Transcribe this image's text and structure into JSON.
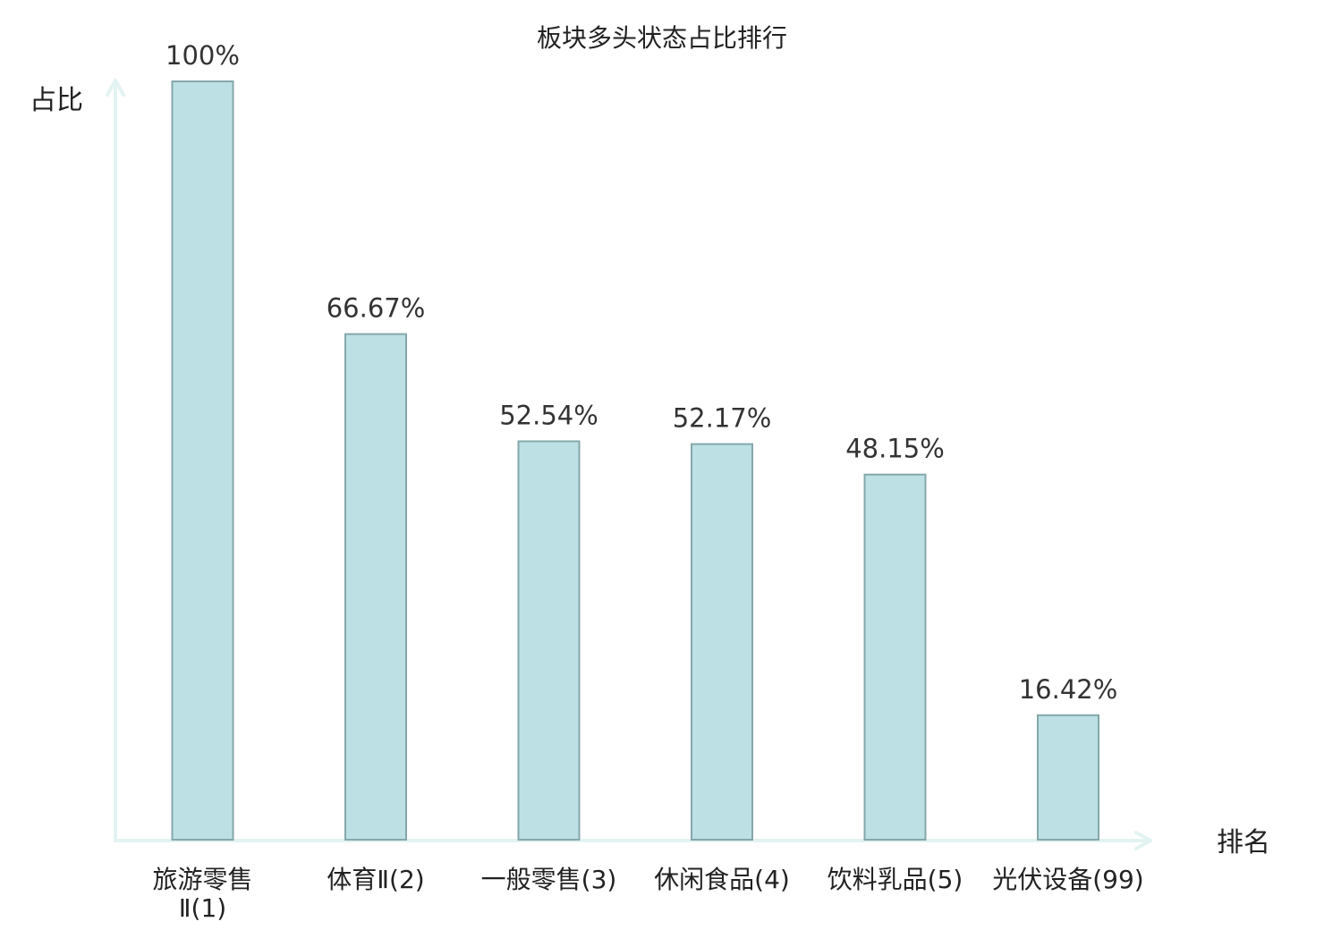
{
  "chart_data": {
    "type": "bar",
    "title": "板块多头状态占比排行",
    "ylabel": "占比",
    "xlabel": "排名",
    "ylim": [
      0,
      100
    ],
    "grid": false,
    "categories": [
      {
        "name": "旅游零售Ⅱ",
        "rank": "(1)"
      },
      {
        "name": "体育Ⅱ",
        "rank": "(2)"
      },
      {
        "name": "一般零售",
        "rank": "(3)"
      },
      {
        "name": "休闲食品",
        "rank": "(4)"
      },
      {
        "name": "饮料乳品",
        "rank": "(5)"
      },
      {
        "name": "光伏设备",
        "rank": "(99)",
        "highlight": true
      }
    ],
    "values": [
      100,
      66.67,
      52.54,
      52.17,
      48.15,
      16.42
    ],
    "value_labels": [
      "100%",
      "66.67%",
      "52.54%",
      "52.17%",
      "48.15%",
      "16.42%"
    ]
  },
  "colors": {
    "bar_fill": "#bce0e3",
    "bar_stroke": "#85a7ab",
    "axis": "#e3f3f1",
    "highlight_text": "#e02020",
    "text": "#222222"
  }
}
